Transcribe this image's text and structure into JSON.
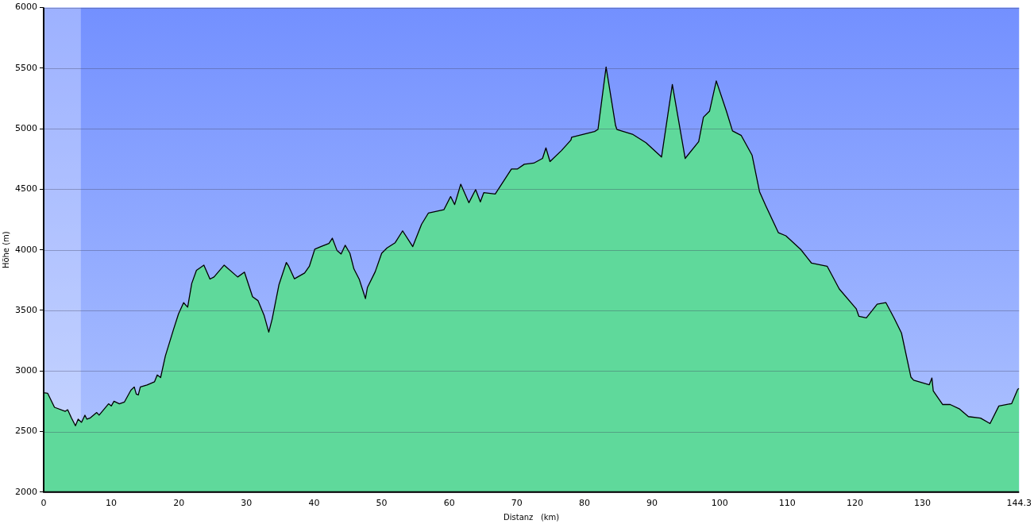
{
  "chart_data": {
    "type": "area",
    "xlabel": "Distanz   (km)",
    "ylabel": "Höhe (m)",
    "xlim": [
      0,
      144.3
    ],
    "xticks": [
      0,
      10,
      20,
      30,
      40,
      50,
      60,
      70,
      80,
      90,
      100,
      110,
      120,
      130,
      144.3
    ],
    "ylim": [
      2000,
      6000
    ],
    "yticks": [
      2000,
      2500,
      3000,
      3500,
      4000,
      4500,
      5000,
      5500,
      6000
    ],
    "grid": "y",
    "legend": false,
    "marker": "none",
    "line_style": "solid",
    "bands": [
      {
        "axis": "x",
        "from": 0,
        "to": 5.5,
        "color": "#ffffff"
      }
    ],
    "series": [
      {
        "color": "#5fd99b",
        "x": [
          0,
          0.6,
          1.6,
          3.2,
          3.55,
          4.1,
          4.7,
          5.1,
          5.6,
          6.1,
          6.4,
          6.9,
          7.85,
          8.2,
          9.6,
          10,
          10.4,
          11.2,
          11.95,
          12.9,
          13.4,
          13.7,
          14.0,
          14.3,
          15.3,
          16.4,
          16.8,
          17.3,
          18.0,
          19.2,
          19.95,
          20.7,
          21.3,
          21.9,
          22.6,
          23.7,
          24.6,
          25.2,
          26.7,
          28.7,
          29.7,
          30.9,
          31.7,
          32.6,
          33.3,
          33.8,
          34.8,
          35.9,
          36.2,
          37.1,
          38.6,
          39.3,
          40.1,
          41.0,
          42.2,
          42.7,
          43.4,
          44.0,
          44.6,
          45.3,
          45.9,
          46.7,
          47.6,
          47.9,
          49.05,
          50.0,
          50.8,
          52.0,
          53.1,
          54.6,
          55.9,
          56.9,
          59.2,
          60.2,
          60.8,
          61.7,
          62.9,
          63.9,
          64.6,
          65.1,
          66.8,
          69.2,
          70.1,
          71.1,
          72.5,
          73.8,
          74.3,
          74.9,
          76.6,
          78.0,
          78.1,
          81.5,
          82.0,
          83.2,
          84.6,
          84.8,
          87.1,
          89.1,
          91.4,
          93.0,
          94.9,
          96.9,
          97.6,
          98.5,
          99.5,
          101.0,
          101.9,
          103.2,
          104.8,
          105.9,
          106.8,
          108.7,
          109.8,
          112.0,
          113.6,
          115.9,
          117.7,
          120.2,
          120.6,
          121.7,
          123.3,
          124.6,
          125.8,
          126.9,
          128.3,
          128.7,
          131.0,
          131.4,
          131.6,
          133.0,
          134.1,
          135.5,
          136.8,
          138.6,
          140.0,
          141.3,
          143.2,
          144.1,
          144.3
        ],
        "values": [
          2820,
          2815,
          2700,
          2667,
          2680,
          2613,
          2548,
          2602,
          2576,
          2635,
          2602,
          2613,
          2657,
          2635,
          2729,
          2711,
          2750,
          2729,
          2744,
          2841,
          2868,
          2809,
          2802,
          2868,
          2885,
          2911,
          2967,
          2946,
          3124,
          3342,
          3472,
          3564,
          3527,
          3722,
          3831,
          3874,
          3759,
          3776,
          3874,
          3776,
          3816,
          3613,
          3581,
          3461,
          3320,
          3429,
          3711,
          3896,
          3870,
          3761,
          3809,
          3864,
          4005,
          4027,
          4053,
          4096,
          3994,
          3966,
          4038,
          3972,
          3842,
          3755,
          3598,
          3690,
          3820,
          3972,
          4016,
          4059,
          4157,
          4027,
          4211,
          4303,
          4331,
          4440,
          4374,
          4542,
          4389,
          4498,
          4396,
          4472,
          4461,
          4668,
          4668,
          4707,
          4716,
          4755,
          4842,
          4729,
          4820,
          4907,
          4929,
          4977,
          4994,
          5510,
          5027,
          4994,
          4955,
          4885,
          4766,
          5366,
          4755,
          4894,
          5095,
          5145,
          5395,
          5145,
          4982,
          4944,
          4781,
          4480,
          4367,
          4141,
          4116,
          4003,
          3890,
          3865,
          3677,
          3514,
          3451,
          3438,
          3551,
          3564,
          3438,
          3313,
          2949,
          2924,
          2886,
          2942,
          2836,
          2723,
          2723,
          2686,
          2623,
          2611,
          2566,
          2711,
          2731,
          2849,
          2856
        ]
      }
    ]
  }
}
